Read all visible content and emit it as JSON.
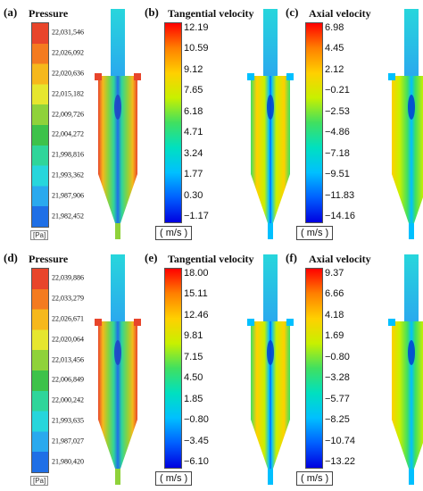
{
  "panels": [
    {
      "label": "(a)",
      "title": "Pressure",
      "unit": "[Pa]",
      "kind": "pressure",
      "ticks": [
        "22,031,546",
        "22,026,092",
        "22,020,636",
        "22,015,182",
        "22,009,726",
        "22,004,272",
        "21,998,816",
        "21,993,362",
        "21,987,906",
        "21,982,452"
      ]
    },
    {
      "label": "(b)",
      "title": "Tangential velocity",
      "unit": "( m/s )",
      "kind": "tangential",
      "ticks": [
        "12.19",
        "10.59",
        "9.12",
        "7.65",
        "6.18",
        "4.71",
        "3.24",
        "1.77",
        "0.30",
        "−1.17"
      ]
    },
    {
      "label": "(c)",
      "title": "Axial velocity",
      "unit": "( m/s )",
      "kind": "axial",
      "ticks": [
        "6.98",
        "4.45",
        "2.12",
        "−0.21",
        "−2.53",
        "−4.86",
        "−7.18",
        "−9.51",
        "−11.83",
        "−14.16"
      ]
    },
    {
      "label": "(d)",
      "title": "Pressure",
      "unit": "[Pa]",
      "kind": "pressure",
      "ticks": [
        "22,039,886",
        "22,033,279",
        "22,026,671",
        "22,020,064",
        "22,013,456",
        "22,006,849",
        "22,000,242",
        "21,993,635",
        "21,987,027",
        "21,980,420"
      ]
    },
    {
      "label": "(e)",
      "title": "Tangential velocity",
      "unit": "( m/s )",
      "kind": "tangential",
      "ticks": [
        "18.00",
        "15.11",
        "12.46",
        "9.81",
        "7.15",
        "4.50",
        "1.85",
        "−0.80",
        "−3.45",
        "−6.10"
      ]
    },
    {
      "label": "(f)",
      "title": "Axial velocity",
      "unit": "( m/s )",
      "kind": "axial",
      "ticks": [
        "9.37",
        "6.66",
        "4.18",
        "1.69",
        "−0.80",
        "−3.28",
        "−5.77",
        "−8.25",
        "−10.74",
        "−13.22"
      ]
    }
  ],
  "colors": {
    "pressure_bands": [
      "#e8452b",
      "#f47b20",
      "#f6b81c",
      "#e6e62e",
      "#8fd23a",
      "#3dc24a",
      "#2fd59a",
      "#27d6dc",
      "#2aa9ee",
      "#1f6fe6"
    ],
    "jet": [
      "#ff0000",
      "#ff8000",
      "#ffd000",
      "#c8f000",
      "#40e060",
      "#00e0c0",
      "#00c0ff",
      "#0060ff",
      "#0000e0"
    ]
  }
}
